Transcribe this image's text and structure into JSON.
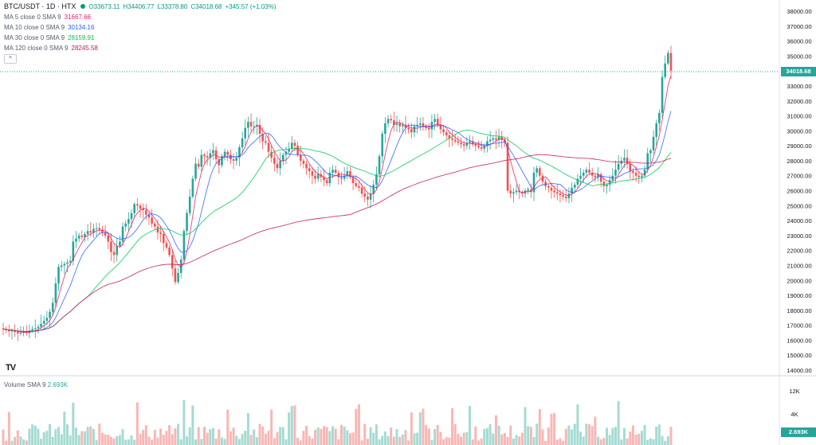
{
  "header": {
    "symbol": "BTC/USDT · 1D · HTX",
    "open": "O33673.11",
    "high": "H34406.77",
    "low": "L33378.80",
    "close": "C34018.68",
    "change": "+345.57 (+1.03%)"
  },
  "indicators": [
    {
      "label": "MA 5 close 0 SMA 9",
      "value": "31667.66",
      "color": "#e91e63"
    },
    {
      "label": "MA 10 close 0 SMA 9",
      "value": "30134.16",
      "color": "#2962ff"
    },
    {
      "label": "MA 30 close 0 SMA 9",
      "value": "28159.91",
      "color": "#00c853"
    },
    {
      "label": "MA 120 close 0 SMA 9",
      "value": "28245.58",
      "color": "#c2185b"
    }
  ],
  "volume_legend": {
    "label": "Volume SMA 9",
    "value": "2.693K"
  },
  "collapse_symbol": "^",
  "logo_text": "TV",
  "price_axis_labels": [
    "38000.00",
    "37000.00",
    "36000.00",
    "35000.00",
    "33000.00",
    "32000.00",
    "31000.00",
    "30000.00",
    "29000.00",
    "28000.00",
    "27000.00",
    "26000.00",
    "25000.00",
    "24000.00",
    "23000.00",
    "22000.00",
    "21000.00",
    "20000.00",
    "19000.00",
    "18000.00",
    "17000.00",
    "16000.00",
    "15000.00",
    "14000.00"
  ],
  "current_price_label": "34018.68",
  "volume_axis_labels": [
    "12K",
    "4K"
  ],
  "volume_current_label": "2.693K",
  "colors": {
    "up": "#26a69a",
    "down": "#ef5350",
    "up_vol": "#a5dbd2",
    "down_vol": "#f7b7b5"
  },
  "chart_data": {
    "type": "candlestick",
    "y_range": [
      14000,
      38000
    ],
    "closes": [
      16750,
      16700,
      16600,
      16650,
      16550,
      16450,
      16500,
      16550,
      16500,
      16650,
      16750,
      16800,
      16900,
      17100,
      17300,
      17500,
      17900,
      18500,
      19800,
      20900,
      21000,
      21100,
      21200,
      21300,
      22600,
      22800,
      23000,
      22900,
      23100,
      23300,
      23200,
      23450,
      23500,
      23400,
      23200,
      23000,
      22600,
      21900,
      21700,
      22300,
      22600,
      23600,
      23800,
      24100,
      24500,
      25100,
      25000,
      24800,
      24700,
      24400,
      24200,
      23800,
      23600,
      23200,
      23100,
      22500,
      22200,
      21700,
      20800,
      19900,
      20500,
      21400,
      23300,
      24500,
      25600,
      26800,
      27800,
      27600,
      28400,
      28300,
      28200,
      28500,
      28700,
      28100,
      27700,
      28300,
      28600,
      28400,
      28100,
      28000,
      28200,
      28900,
      29500,
      30200,
      30600,
      30300,
      30300,
      30400,
      29800,
      29300,
      29200,
      28600,
      28200,
      27800,
      27500,
      28000,
      28400,
      28600,
      28800,
      29200,
      29000,
      28400,
      28000,
      27800,
      27500,
      27300,
      27000,
      26800,
      27100,
      26900,
      26700,
      26500,
      27200,
      27400,
      27200,
      26900,
      26800,
      27000,
      27300,
      26900,
      26500,
      26300,
      26200,
      25800,
      25600,
      25400,
      25800,
      26400,
      27100,
      28300,
      29800,
      30500,
      30800,
      30700,
      30400,
      30500,
      30300,
      30400,
      30200,
      30100,
      29900,
      30300,
      30400,
      30500,
      30300,
      30200,
      30100,
      30600,
      30800,
      30400,
      30100,
      29900,
      29700,
      29500,
      29400,
      29300,
      29200,
      29100,
      29000,
      29200,
      29300,
      29100,
      29000,
      28900,
      28800,
      29000,
      29300,
      29400,
      29500,
      29400,
      29600,
      29400,
      29200,
      26000,
      25800,
      25900,
      26000,
      25900,
      25800,
      26000,
      26100,
      25900,
      27200,
      27500,
      27000,
      26600,
      26300,
      26200,
      26000,
      25900,
      25800,
      25700,
      25600,
      25500,
      25800,
      26200,
      26400,
      26800,
      27000,
      27200,
      27400,
      27200,
      27000,
      26900,
      27100,
      26600,
      26300,
      26400,
      26700,
      27000,
      27400,
      27800,
      28000,
      28200,
      27800,
      27300,
      27200,
      27000,
      26900,
      27000,
      27400,
      28500,
      28700,
      29600,
      30500,
      31200,
      33600,
      34500,
      35200,
      34018
    ]
  }
}
